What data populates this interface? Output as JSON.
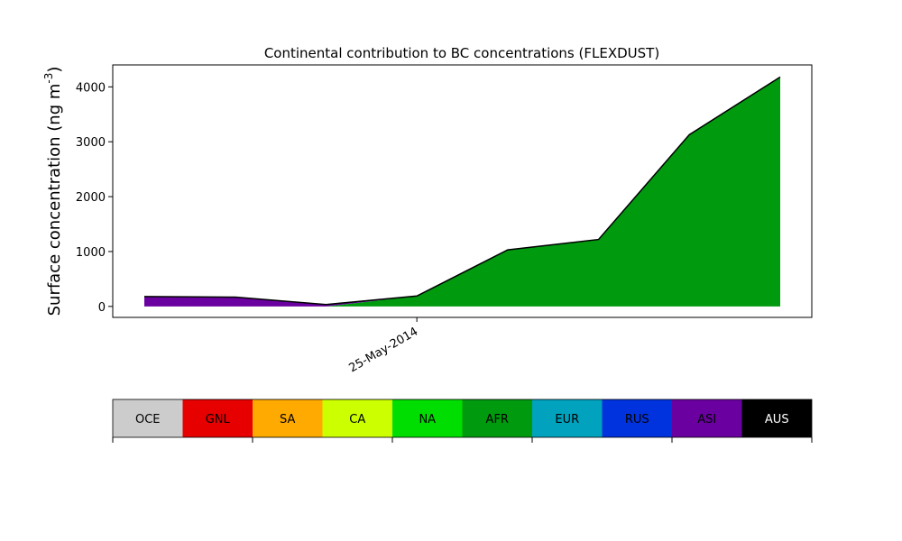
{
  "chart_data": {
    "type": "area",
    "title": "Continental contribution to BC concentrations (FLEXDUST)",
    "ylabel": "Surface concentration (ng m",
    "ylabel_sup": "-3",
    "ylabel_close": ")",
    "xlabel": "",
    "ylim": [
      -200,
      4400
    ],
    "y_ticks": [
      0,
      1000,
      2000,
      3000,
      4000
    ],
    "x_tick_label": "25-May-2014",
    "x_tick_index": 3,
    "x_count": 8,
    "stack_order": [
      "OCE",
      "GNL",
      "SA",
      "CA",
      "NA",
      "AFR",
      "EUR",
      "RUS",
      "ASI",
      "AUS"
    ],
    "series": [
      {
        "name": "AFR",
        "color": "#009a0f",
        "values": [
          0,
          0,
          0,
          190,
          1030,
          1220,
          3130,
          4180
        ]
      },
      {
        "name": "ASI",
        "color": "#6a00a0",
        "values": [
          180,
          170,
          35,
          0,
          0,
          0,
          0,
          0
        ]
      }
    ],
    "legend": [
      {
        "name": "OCE",
        "color": "#cccccc",
        "text_color": "#000000"
      },
      {
        "name": "GNL",
        "color": "#e60000",
        "text_color": "#000000"
      },
      {
        "name": "SA",
        "color": "#ffaa00",
        "text_color": "#000000"
      },
      {
        "name": "CA",
        "color": "#ccff00",
        "text_color": "#000000"
      },
      {
        "name": "NA",
        "color": "#00dd00",
        "text_color": "#000000"
      },
      {
        "name": "AFR",
        "color": "#009a0f",
        "text_color": "#000000"
      },
      {
        "name": "EUR",
        "color": "#00a2bd",
        "text_color": "#000000"
      },
      {
        "name": "RUS",
        "color": "#0033dd",
        "text_color": "#000000"
      },
      {
        "name": "ASI",
        "color": "#6a00a0",
        "text_color": "#000000"
      },
      {
        "name": "AUS",
        "color": "#000000",
        "text_color": "#ffffff"
      }
    ],
    "grid": false,
    "legend_position": "bottom"
  }
}
